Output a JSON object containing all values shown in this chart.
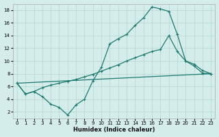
{
  "xlabel": "Humidex (Indice chaleur)",
  "bg_color": "#d4ecea",
  "grid_color": "#b8d8d4",
  "line_color": "#1a7a6e",
  "xlim": [
    -0.5,
    23.5
  ],
  "ylim": [
    1.0,
    19.0
  ],
  "xticks": [
    0,
    1,
    2,
    3,
    4,
    5,
    6,
    7,
    8,
    9,
    10,
    11,
    12,
    13,
    14,
    15,
    16,
    17,
    18,
    19,
    20,
    21,
    22,
    23
  ],
  "yticks": [
    2,
    4,
    6,
    8,
    10,
    12,
    14,
    16,
    18
  ],
  "curve1_x": [
    0,
    1,
    2,
    3,
    4,
    5,
    6,
    7,
    8,
    9,
    10,
    11,
    12,
    13,
    14,
    15,
    16,
    17,
    18,
    19,
    20,
    21,
    22,
    23
  ],
  "curve1_y": [
    6.5,
    4.8,
    5.2,
    4.4,
    3.2,
    2.7,
    1.5,
    3.1,
    4.0,
    6.9,
    9.0,
    12.7,
    13.5,
    14.2,
    15.6,
    16.8,
    18.5,
    18.2,
    17.8,
    14.2,
    10.0,
    9.2,
    8.1,
    8.0
  ],
  "curve2_x": [
    0,
    1,
    2,
    3,
    4,
    5,
    6,
    7,
    8,
    9,
    10,
    11,
    12,
    13,
    14,
    15,
    16,
    17,
    18,
    19,
    20,
    21,
    22,
    23
  ],
  "curve2_y": [
    6.5,
    4.8,
    5.2,
    5.8,
    6.2,
    6.5,
    6.8,
    7.1,
    7.5,
    7.9,
    8.4,
    8.9,
    9.4,
    10.0,
    10.5,
    11.0,
    11.5,
    11.8,
    14.0,
    11.5,
    10.0,
    9.5,
    8.5,
    8.0
  ],
  "curve3_x": [
    0,
    23
  ],
  "curve3_y": [
    6.5,
    8.0
  ]
}
